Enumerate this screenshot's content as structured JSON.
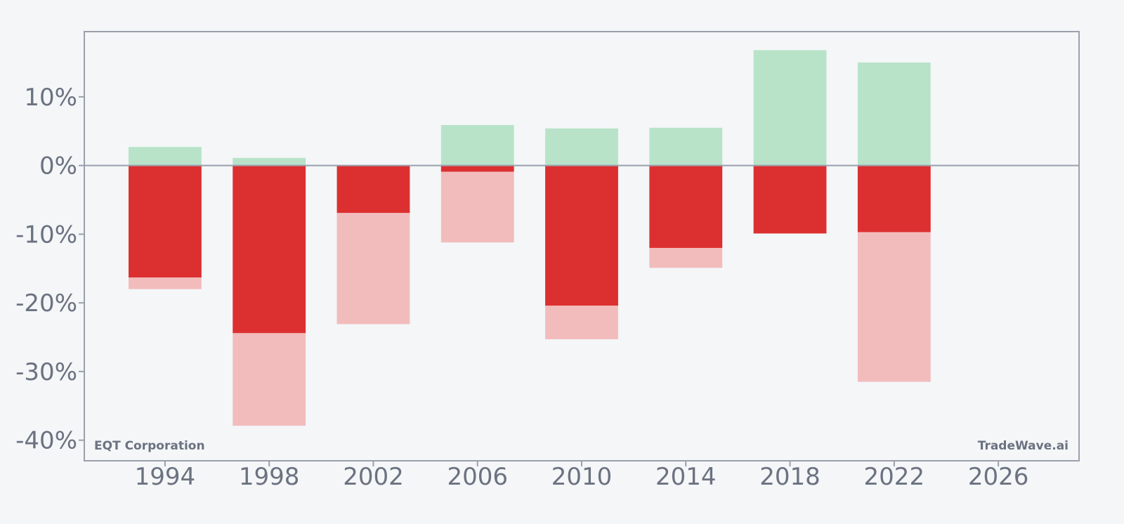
{
  "chart_data": {
    "type": "bar",
    "x": [
      1994,
      1998,
      2002,
      2006,
      2010,
      2014,
      2018,
      2022
    ],
    "series": [
      {
        "role": "gain",
        "values": [
          2.7,
          1.1,
          0,
          5.9,
          5.4,
          5.5,
          16.8,
          15.0
        ]
      },
      {
        "role": "loss",
        "values": [
          -16.3,
          -24.4,
          -6.9,
          -0.9,
          -20.4,
          -12.0,
          -9.9,
          -9.7
        ]
      },
      {
        "role": "max-drawdown",
        "values": [
          -18.0,
          -37.9,
          -23.1,
          -11.2,
          -25.3,
          -14.9,
          null,
          -31.5
        ]
      }
    ],
    "x_ticks": [
      "1994",
      "1998",
      "2002",
      "2006",
      "2010",
      "2014",
      "2018",
      "2022",
      "2026"
    ],
    "y_ticks": [
      {
        "value": 10,
        "label": "10%"
      },
      {
        "value": 0,
        "label": "0%"
      },
      {
        "value": -10,
        "label": "-10%"
      },
      {
        "value": -20,
        "label": "-20%"
      },
      {
        "value": -30,
        "label": "-30%"
      },
      {
        "value": -40,
        "label": "-40%"
      }
    ],
    "xlim": [
      1990.9,
      2029.1
    ],
    "ylim": [
      -43.0,
      19.5
    ],
    "xlabel": "",
    "ylabel": "",
    "colors": {
      "gain": "#b8e3c8",
      "loss": "#dc3030",
      "max_drawdown": "#f2bcbc",
      "axis": "#9aa0ac",
      "background": "#f4f6f8"
    }
  },
  "footer": {
    "company": "EQT Corporation",
    "brand": "TradeWave.ai"
  }
}
